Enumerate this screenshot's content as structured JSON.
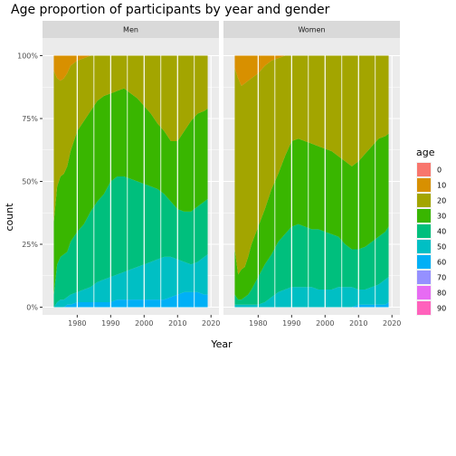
{
  "chart_data": {
    "type": "area",
    "title": "Age proportion of participants by year and gender",
    "xlabel": "Year",
    "ylabel": "count",
    "position": "fill",
    "x_range": [
      1972,
      2020
    ],
    "y_range": [
      0,
      1
    ],
    "x_ticks": [
      1980,
      1990,
      2000,
      2010,
      2020
    ],
    "x_tick_labels": [
      "1980",
      "1990",
      "2000",
      "2010",
      "2020"
    ],
    "y_ticks": [
      0,
      0.25,
      0.5,
      0.75,
      1
    ],
    "y_tick_labels": [
      "0%",
      "25%",
      "50%",
      "75%",
      "100%"
    ],
    "legend": {
      "title": "age",
      "placement": "right",
      "entries": [
        {
          "label": "0",
          "color": "#F8766D"
        },
        {
          "label": "10",
          "color": "#D89000"
        },
        {
          "label": "20",
          "color": "#A3A500"
        },
        {
          "label": "30",
          "color": "#39B600"
        },
        {
          "label": "40",
          "color": "#00BF7D"
        },
        {
          "label": "50",
          "color": "#00BFC4"
        },
        {
          "label": "60",
          "color": "#00B0F6"
        },
        {
          "label": "70",
          "color": "#9590FF"
        },
        {
          "label": "80",
          "color": "#E76BF3"
        },
        {
          "label": "90",
          "color": "#FF62BC"
        }
      ]
    },
    "panel_layout": "facets by gender, 1 row, 2 columns",
    "facets": [
      {
        "label": "Men",
        "cumulative_boundaries_note": "upper edge of the band for ages 60, 50, 40, 30 and 20 (band for 10 fills to 100%)",
        "x": [
          1973,
          1974,
          1975,
          1976,
          1977,
          1978,
          1980,
          1982,
          1984,
          1986,
          1988,
          1990,
          1992,
          1994,
          1996,
          1998,
          2000,
          2002,
          2004,
          2006,
          2008,
          2010,
          2012,
          2014,
          2016,
          2018,
          2019
        ],
        "cumulative_60": [
          0.0,
          0.0,
          0.0,
          0.0,
          0.01,
          0.01,
          0.02,
          0.02,
          0.02,
          0.02,
          0.02,
          0.02,
          0.03,
          0.03,
          0.03,
          0.03,
          0.03,
          0.03,
          0.03,
          0.03,
          0.04,
          0.05,
          0.06,
          0.06,
          0.06,
          0.05,
          0.05
        ],
        "cumulative_50": [
          0.0,
          0.02,
          0.03,
          0.03,
          0.04,
          0.05,
          0.06,
          0.07,
          0.08,
          0.1,
          0.11,
          0.12,
          0.13,
          0.14,
          0.15,
          0.16,
          0.17,
          0.18,
          0.19,
          0.2,
          0.2,
          0.19,
          0.18,
          0.17,
          0.18,
          0.2,
          0.21
        ],
        "cumulative_40": [
          0.05,
          0.17,
          0.2,
          0.21,
          0.22,
          0.26,
          0.3,
          0.33,
          0.38,
          0.42,
          0.45,
          0.5,
          0.52,
          0.52,
          0.51,
          0.5,
          0.49,
          0.48,
          0.47,
          0.45,
          0.42,
          0.39,
          0.38,
          0.38,
          0.4,
          0.42,
          0.43
        ],
        "cumulative_30": [
          0.34,
          0.48,
          0.52,
          0.53,
          0.56,
          0.62,
          0.7,
          0.74,
          0.78,
          0.82,
          0.84,
          0.85,
          0.86,
          0.87,
          0.85,
          0.83,
          0.8,
          0.77,
          0.73,
          0.7,
          0.66,
          0.66,
          0.7,
          0.74,
          0.77,
          0.78,
          0.79
        ],
        "cumulative_20": [
          0.94,
          0.91,
          0.9,
          0.91,
          0.93,
          0.96,
          0.98,
          0.99,
          1.0,
          1.0,
          1.0,
          1.0,
          1.0,
          1.0,
          1.0,
          1.0,
          1.0,
          1.0,
          1.0,
          1.0,
          1.0,
          1.0,
          1.0,
          1.0,
          1.0,
          1.0,
          1.0
        ]
      },
      {
        "label": "Women",
        "cumulative_boundaries_note": "upper edge of the band for ages 60, 50, 40, 30 and 20 (band for 10 fills to 100%)",
        "x": [
          1973,
          1974,
          1975,
          1976,
          1977,
          1978,
          1980,
          1982,
          1984,
          1986,
          1988,
          1990,
          1992,
          1994,
          1996,
          1998,
          2000,
          2002,
          2004,
          2006,
          2008,
          2010,
          2012,
          2014,
          2016,
          2018,
          2019
        ],
        "cumulative_60": [
          0.0,
          0.0,
          0.0,
          0.0,
          0.0,
          0.0,
          0.0,
          0.0,
          0.0,
          0.0,
          0.0,
          0.0,
          0.0,
          0.0,
          0.0,
          0.0,
          0.0,
          0.0,
          0.0,
          0.0,
          0.0,
          0.01,
          0.01,
          0.01,
          0.01,
          0.01,
          0.02
        ],
        "cumulative_50": [
          0.01,
          0.01,
          0.01,
          0.01,
          0.01,
          0.01,
          0.01,
          0.02,
          0.04,
          0.06,
          0.07,
          0.08,
          0.08,
          0.08,
          0.08,
          0.07,
          0.07,
          0.07,
          0.08,
          0.08,
          0.08,
          0.07,
          0.07,
          0.08,
          0.09,
          0.11,
          0.12
        ],
        "cumulative_40": [
          0.05,
          0.03,
          0.03,
          0.04,
          0.05,
          0.07,
          0.12,
          0.17,
          0.21,
          0.26,
          0.29,
          0.32,
          0.33,
          0.32,
          0.31,
          0.31,
          0.3,
          0.29,
          0.28,
          0.25,
          0.23,
          0.23,
          0.24,
          0.26,
          0.28,
          0.3,
          0.32
        ],
        "cumulative_30": [
          0.23,
          0.13,
          0.15,
          0.16,
          0.2,
          0.25,
          0.32,
          0.39,
          0.47,
          0.53,
          0.6,
          0.66,
          0.67,
          0.66,
          0.65,
          0.64,
          0.63,
          0.62,
          0.6,
          0.58,
          0.56,
          0.58,
          0.61,
          0.64,
          0.67,
          0.68,
          0.69
        ],
        "cumulative_20": [
          0.95,
          0.91,
          0.88,
          0.89,
          0.9,
          0.91,
          0.93,
          0.96,
          0.98,
          0.99,
          1.0,
          1.0,
          1.0,
          1.0,
          1.0,
          1.0,
          1.0,
          1.0,
          1.0,
          1.0,
          1.0,
          1.0,
          1.0,
          1.0,
          1.0,
          1.0,
          1.0
        ]
      }
    ]
  }
}
